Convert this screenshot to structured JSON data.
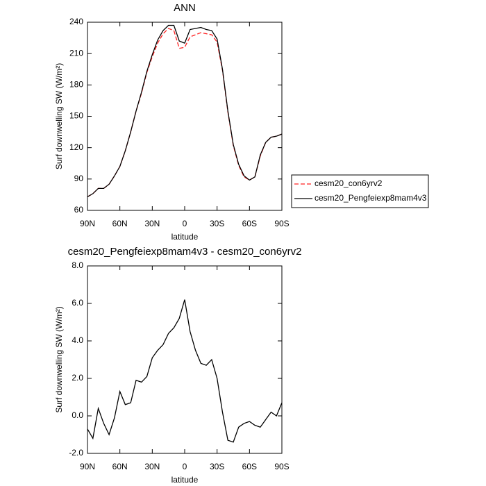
{
  "chart_data": [
    {
      "type": "line",
      "title": "ANN",
      "xlabel": "latitude",
      "ylabel": "Surf downwelling SW (W/m²)",
      "x": [
        90,
        85,
        80,
        75,
        70,
        65,
        60,
        55,
        50,
        45,
        40,
        35,
        30,
        25,
        20,
        15,
        10,
        5,
        0,
        -5,
        -10,
        -15,
        -20,
        -25,
        -30,
        -35,
        -40,
        -45,
        -50,
        -55,
        -60,
        -65,
        -70,
        -75,
        -80,
        -85,
        -90
      ],
      "xlim": [
        90,
        -90
      ],
      "xticks": [
        {
          "value": 90,
          "label": "90N"
        },
        {
          "value": 60,
          "label": "60N"
        },
        {
          "value": 30,
          "label": "30N"
        },
        0,
        {
          "value": -30,
          "label": "30S"
        },
        {
          "value": -60,
          "label": "60S"
        },
        {
          "value": -90,
          "label": "90S"
        }
      ],
      "ylim": [
        60,
        240
      ],
      "yticks": [
        60,
        90,
        120,
        150,
        180,
        210,
        240
      ],
      "legend": "outside-right",
      "series": [
        {
          "name": "cesm20_con6yrv2",
          "color": "#ff2020",
          "dashed": true,
          "values": [
            73,
            76,
            81,
            81,
            85,
            93,
            102,
            117,
            135,
            155,
            172,
            192,
            207,
            220,
            229,
            234,
            232,
            215,
            216,
            226,
            228,
            230,
            229,
            228,
            221,
            194,
            154,
            122,
            103,
            92,
            89,
            92,
            112,
            125,
            130,
            131,
            133
          ]
        },
        {
          "name": "cesm20_Pengfeiexp8mam4v3",
          "color": "#000000",
          "dashed": false,
          "values": [
            73,
            76,
            81,
            81,
            85,
            93,
            102,
            117,
            135,
            155,
            173,
            193,
            209,
            223,
            232,
            237,
            237,
            222,
            220,
            233,
            234,
            235,
            233,
            232,
            224,
            195,
            155,
            123,
            104,
            93,
            89,
            92,
            113,
            125,
            130,
            131,
            133
          ]
        }
      ]
    },
    {
      "type": "line",
      "title": "cesm20_Pengfeiexp8mam4v3 - cesm20_con6yrv2",
      "xlabel": "latitude",
      "ylabel": "Surf downwelling SW (W/m²)",
      "x": [
        90,
        85,
        80,
        75,
        70,
        65,
        60,
        55,
        50,
        45,
        40,
        35,
        30,
        25,
        20,
        15,
        10,
        5,
        0,
        -5,
        -10,
        -15,
        -20,
        -25,
        -30,
        -35,
        -40,
        -45,
        -50,
        -55,
        -60,
        -65,
        -70,
        -75,
        -80,
        -85,
        -90
      ],
      "xlim": [
        90,
        -90
      ],
      "xticks": [
        {
          "value": 90,
          "label": "90N"
        },
        {
          "value": 60,
          "label": "60N"
        },
        {
          "value": 30,
          "label": "30N"
        },
        0,
        {
          "value": -30,
          "label": "30S"
        },
        {
          "value": -60,
          "label": "60S"
        },
        {
          "value": -90,
          "label": "90S"
        }
      ],
      "ylim": [
        -2,
        8
      ],
      "yticks": [
        {
          "value": -2,
          "label": "-2.0"
        },
        {
          "value": 0,
          "label": "0.0"
        },
        {
          "value": 2,
          "label": "2.0"
        },
        {
          "value": 4,
          "label": "4.0"
        },
        {
          "value": 6,
          "label": "6.0"
        },
        {
          "value": 8,
          "label": "8.0"
        }
      ],
      "series": [
        {
          "color": "#000000",
          "dashed": false,
          "values": [
            -0.7,
            -1.2,
            0.4,
            -0.4,
            -1.0,
            -0.1,
            1.3,
            0.6,
            0.7,
            1.9,
            1.8,
            2.1,
            3.1,
            3.5,
            3.8,
            4.4,
            4.7,
            5.2,
            6.2,
            4.5,
            3.5,
            2.8,
            2.7,
            3.0,
            2.0,
            0.2,
            -1.3,
            -1.4,
            -0.6,
            -0.4,
            -0.3,
            -0.5,
            -0.6,
            -0.2,
            0.2,
            0.0,
            0.7
          ]
        }
      ]
    }
  ]
}
